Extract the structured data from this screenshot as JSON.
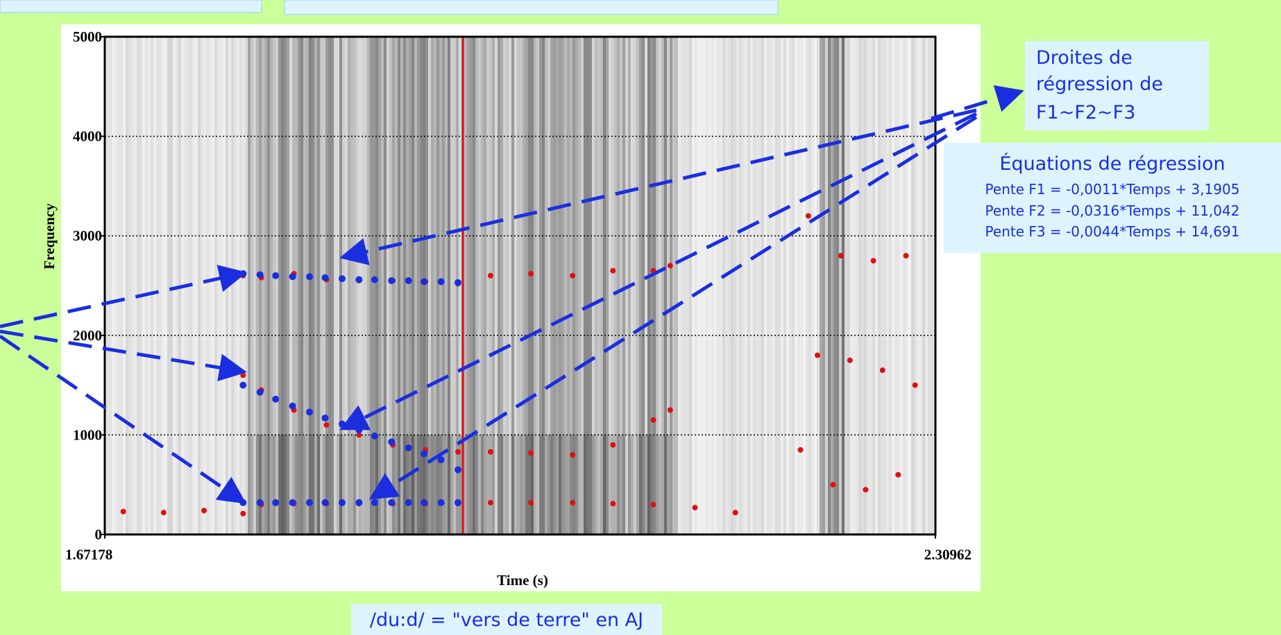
{
  "chart_data": {
    "type": "scatter",
    "y_label": "Frequency",
    "x_label": "Time (s)",
    "xlim": [
      1.67178,
      2.30962
    ],
    "xticks": [
      1.67178,
      2.30962
    ],
    "ylim": [
      0,
      5000
    ],
    "yticks": [
      0,
      1000,
      2000,
      3000,
      4000,
      5000
    ],
    "grid": true,
    "series": [
      {
        "color": "#e01010",
        "x": [
          1.686,
          1.717,
          1.748,
          1.778,
          1.792,
          1.817,
          1.842,
          1.867,
          1.893,
          1.918,
          1.943,
          1.968,
          1.999,
          2.031,
          2.062,
          2.093,
          2.125,
          2.156
        ],
        "values": [
          230,
          220,
          240,
          210,
          300,
          310,
          310,
          310,
          310,
          310,
          310,
          320,
          320,
          320,
          310,
          300,
          270,
          220
        ]
      },
      {
        "color": "#e01010",
        "x": [
          1.778,
          1.792,
          1.817,
          1.842,
          1.867,
          1.893,
          1.918,
          1.943,
          1.968,
          1.999,
          2.031,
          2.062,
          2.093,
          2.106
        ],
        "values": [
          1600,
          1450,
          1250,
          1100,
          1000,
          900,
          850,
          830,
          830,
          820,
          800,
          900,
          1150,
          1250
        ]
      },
      {
        "color": "#e01010",
        "x": [
          1.778,
          1.792,
          1.817,
          1.842,
          1.867,
          1.893,
          1.918,
          1.943,
          1.968,
          1.999,
          2.031,
          2.062,
          2.093,
          2.106
        ],
        "values": [
          2600,
          2580,
          2620,
          2560,
          2550,
          2550,
          2540,
          2520,
          2600,
          2620,
          2600,
          2650,
          2650,
          2700
        ]
      },
      {
        "color": "#e01010",
        "x": [
          2.206,
          2.231,
          2.256,
          2.281,
          2.219,
          2.244,
          2.269,
          2.294,
          2.212,
          2.237,
          2.262,
          2.287
        ],
        "values": [
          850,
          500,
          450,
          600,
          1800,
          1750,
          1650,
          1500,
          3200,
          2800,
          2750,
          2800
        ]
      },
      {
        "color": "#1a2ee0",
        "x": [
          1.778,
          1.791,
          1.803,
          1.816,
          1.829,
          1.841,
          1.854,
          1.867,
          1.879,
          1.892,
          1.905,
          1.917,
          1.93,
          1.943
        ],
        "values": [
          320,
          320,
          320,
          320,
          320,
          320,
          320,
          320,
          320,
          320,
          320,
          320,
          320,
          320
        ]
      },
      {
        "color": "#1a2ee0",
        "x": [
          1.778,
          1.791,
          1.803,
          1.816,
          1.829,
          1.841,
          1.854,
          1.867,
          1.879,
          1.892,
          1.905,
          1.917,
          1.93,
          1.943
        ],
        "values": [
          1500,
          1430,
          1360,
          1290,
          1230,
          1170,
          1110,
          1050,
          990,
          930,
          870,
          810,
          750,
          650
        ]
      },
      {
        "color": "#1a2ee0",
        "x": [
          1.778,
          1.791,
          1.803,
          1.816,
          1.829,
          1.841,
          1.854,
          1.867,
          1.879,
          1.892,
          1.905,
          1.917,
          1.93,
          1.943
        ],
        "values": [
          2620,
          2610,
          2600,
          2590,
          2590,
          2580,
          2570,
          2560,
          2560,
          2550,
          2550,
          2540,
          2540,
          2530
        ]
      }
    ]
  },
  "annotation": {
    "lines": [
      "Droites de",
      "régression de",
      "F1~F2~F3"
    ]
  },
  "equations": {
    "title": "Équations de régression",
    "lines": [
      "Pente F1 = -0,0011*Temps + 3,1905",
      "Pente F2 = -0,0316*Temps + 11,042",
      "Pente F3 = -0,0044*Temps + 14,691"
    ]
  },
  "caption": "/du:d/ = \"vers de terre\" en AJ"
}
